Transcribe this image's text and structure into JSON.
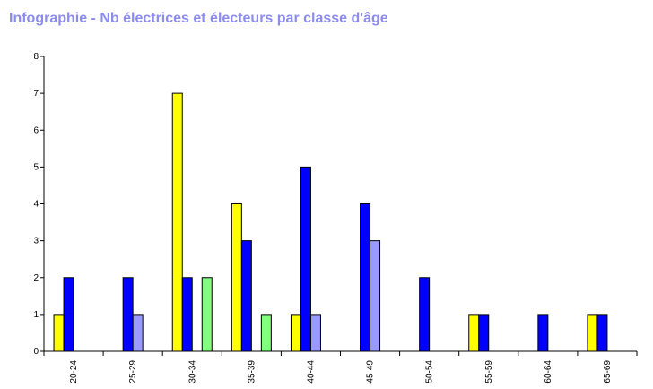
{
  "chart_data": {
    "type": "bar",
    "title": "Infographie - Nb électrices et électeurs par classe d'âge",
    "xlabel": "",
    "ylabel": "",
    "categories": [
      "20-24",
      "25-29",
      "30-34",
      "35-39",
      "40-44",
      "45-49",
      "50-54",
      "55-59",
      "60-64",
      "65-69"
    ],
    "ylim": [
      0,
      8
    ],
    "yticks": [
      "0",
      "1",
      "2",
      "3",
      "4",
      "5",
      "6",
      "7",
      "8"
    ],
    "series": [
      {
        "color": "#ffff00",
        "values": [
          1,
          0,
          7,
          4,
          1,
          0,
          0,
          1,
          0,
          1
        ]
      },
      {
        "color": "#0000ff",
        "values": [
          2,
          2,
          2,
          3,
          5,
          4,
          2,
          1,
          1,
          1
        ]
      },
      {
        "color": "#9999ff",
        "values": [
          0,
          1,
          0,
          0,
          1,
          3,
          0,
          0,
          0,
          0
        ]
      },
      {
        "color": "#80ff80",
        "values": [
          0,
          0,
          2,
          1,
          0,
          0,
          0,
          0,
          0,
          0
        ]
      }
    ],
    "grid": false,
    "legend": "none"
  }
}
